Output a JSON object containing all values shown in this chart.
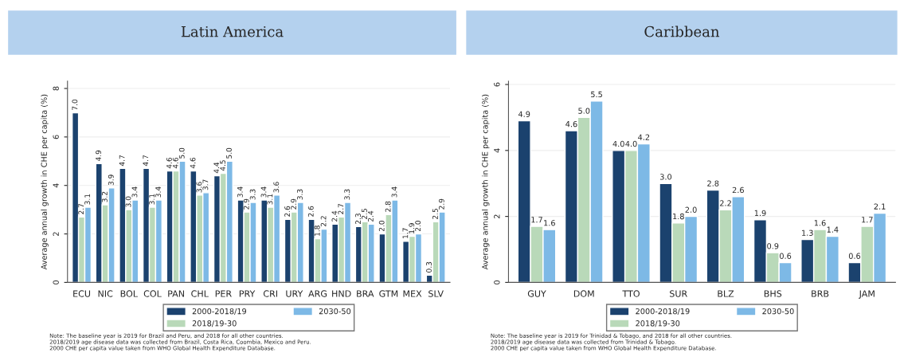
{
  "chart_data": [
    {
      "type": "bar",
      "title": "Latin America",
      "ylabel": "Average annual growth in CHE per capita (%)",
      "categories": [
        "ECU",
        "NIC",
        "BOL",
        "COL",
        "PAN",
        "CHL",
        "PER",
        "PRY",
        "CRI",
        "URY",
        "ARG",
        "HND",
        "BRA",
        "GTM",
        "MEX",
        "SLV"
      ],
      "series": [
        {
          "name": "2000-2018/19",
          "color": "#1b426e",
          "values": [
            7.0,
            4.9,
            4.7,
            4.7,
            4.6,
            4.6,
            4.4,
            3.4,
            3.4,
            2.6,
            2.6,
            2.4,
            2.3,
            2.0,
            1.7,
            0.3
          ],
          "value_labels": [
            "7.0",
            "4.9",
            "4.7",
            "4.7",
            "4.6",
            "4.6",
            "4.4",
            "3.4",
            "3.4",
            "2.6",
            "2.6",
            "2.4",
            "2.3",
            "2.0",
            "1.7",
            "0.3"
          ]
        },
        {
          "name": "2018/19-30",
          "color": "#b9d9b9",
          "values": [
            2.7,
            3.2,
            3.0,
            3.1,
            4.6,
            3.6,
            4.5,
            2.9,
            3.1,
            2.9,
            1.8,
            2.7,
            2.5,
            2.8,
            1.9,
            2.5
          ],
          "value_labels": [
            "2.7",
            "3.2",
            "3.0",
            "3.1",
            "4.6",
            "3.6",
            "4.5",
            "2.9",
            "3.1",
            "2.9",
            "1.8",
            "2.7",
            "2.5",
            "2.8",
            "1.9",
            "2.5"
          ]
        },
        {
          "name": "2030-50",
          "color": "#7db9e6",
          "values": [
            3.1,
            3.9,
            3.4,
            3.4,
            5.0,
            3.7,
            5.0,
            3.3,
            3.6,
            3.3,
            2.2,
            3.3,
            2.4,
            3.4,
            2.0,
            2.9
          ],
          "value_labels": [
            "3.1",
            "3.9",
            "3.4",
            "3.4",
            "5.0",
            "3.7",
            "5.0",
            "3.3",
            "3.6",
            "3.3",
            "2.2",
            "3.3",
            "2.4",
            "3.4",
            "2.0",
            "2.9"
          ]
        }
      ],
      "ylim": [
        0,
        8.3
      ],
      "yticks": [
        0,
        2,
        4,
        6,
        8
      ],
      "grid": "y",
      "legend": "bottom",
      "annotations": [
        "Note: The baseline year is 2019 for Brazil and Peru, and 2018 for all other countries.\n2018/2019 age disease data was collected from Brazil, Costa Rica, Coombia, Mexico and Peru.\n2000 CHE per capita value taken from WHO Global Health Expenditure Database."
      ]
    },
    {
      "type": "bar",
      "title": "Caribbean",
      "ylabel": "Average annual growth in CHE per capita (%)",
      "categories": [
        "GUY",
        "DOM",
        "TTO",
        "SUR",
        "BLZ",
        "BHS",
        "BRB",
        "JAM"
      ],
      "series": [
        {
          "name": "2000-2018/19",
          "color": "#1b426e",
          "values": [
            4.9,
            4.6,
            4.0,
            3.0,
            2.8,
            1.9,
            1.3,
            0.6
          ],
          "value_labels": [
            "4.9",
            "4.6",
            "4.0",
            "3.0",
            "2.8",
            "1.9",
            "1.3",
            "0.6"
          ]
        },
        {
          "name": "2018/19-30",
          "color": "#b9d9b9",
          "values": [
            1.7,
            5.0,
            4.0,
            1.8,
            2.2,
            0.9,
            1.6,
            1.7
          ],
          "value_labels": [
            "1.7",
            "5.0",
            "4.0",
            "1.8",
            "2.2",
            "0.9",
            "1.6",
            "1.7"
          ]
        },
        {
          "name": "2030-50",
          "color": "#7db9e6",
          "values": [
            1.6,
            5.5,
            4.2,
            2.0,
            2.6,
            0.6,
            1.4,
            2.1
          ],
          "value_labels": [
            "1.6",
            "5.5",
            "4.2",
            "2.0",
            "2.6",
            "0.6",
            "1.4",
            "2.1"
          ]
        }
      ],
      "ylim": [
        0,
        6.1
      ],
      "yticks": [
        0,
        2,
        4,
        6
      ],
      "grid": "y",
      "legend": "bottom",
      "annotations": [
        "Note: The baseline year is 2019 for Trinidad & Tobago, and 2018 for all other countries.\n2018/2019 age disease data was collected from Trinidad & Tobago.\n2000 CHE per capita value taken from WHO Global Health Expenditure Database."
      ]
    }
  ]
}
